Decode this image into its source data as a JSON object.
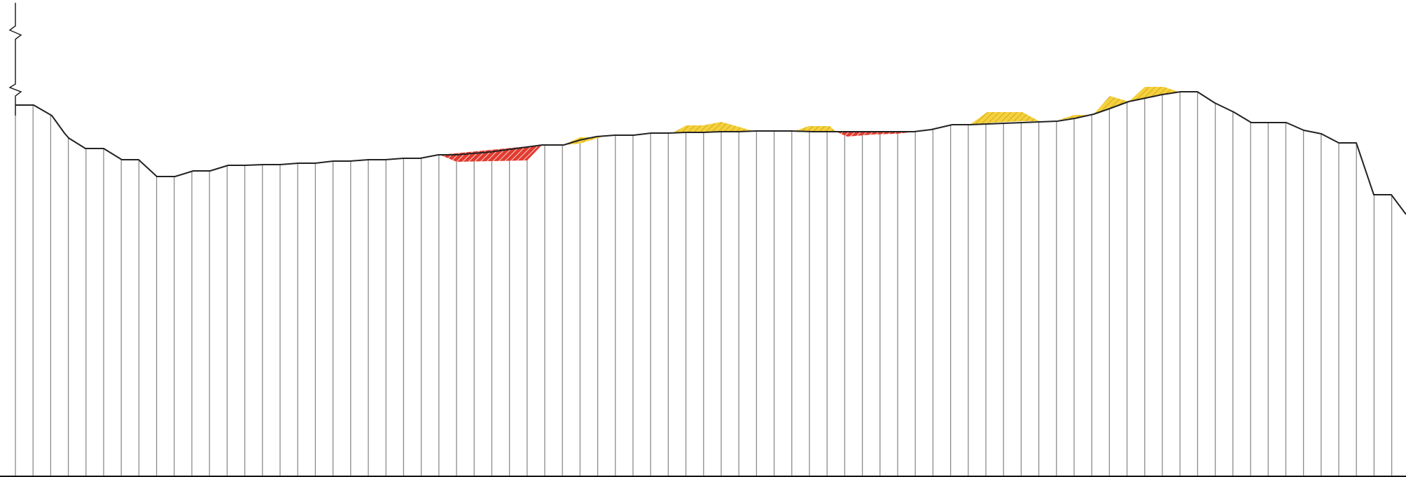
{
  "profile": {
    "colors": {
      "background": "#ffffff",
      "vertical_line": "#8a8a8a",
      "ground_line": "#222222",
      "base_line": "#111111",
      "fill_area": "#f5d13c",
      "fill_hatch": "#b8901a",
      "cut_area": "#e23b30",
      "cut_hatch": "#ffffff"
    }
  }
}
